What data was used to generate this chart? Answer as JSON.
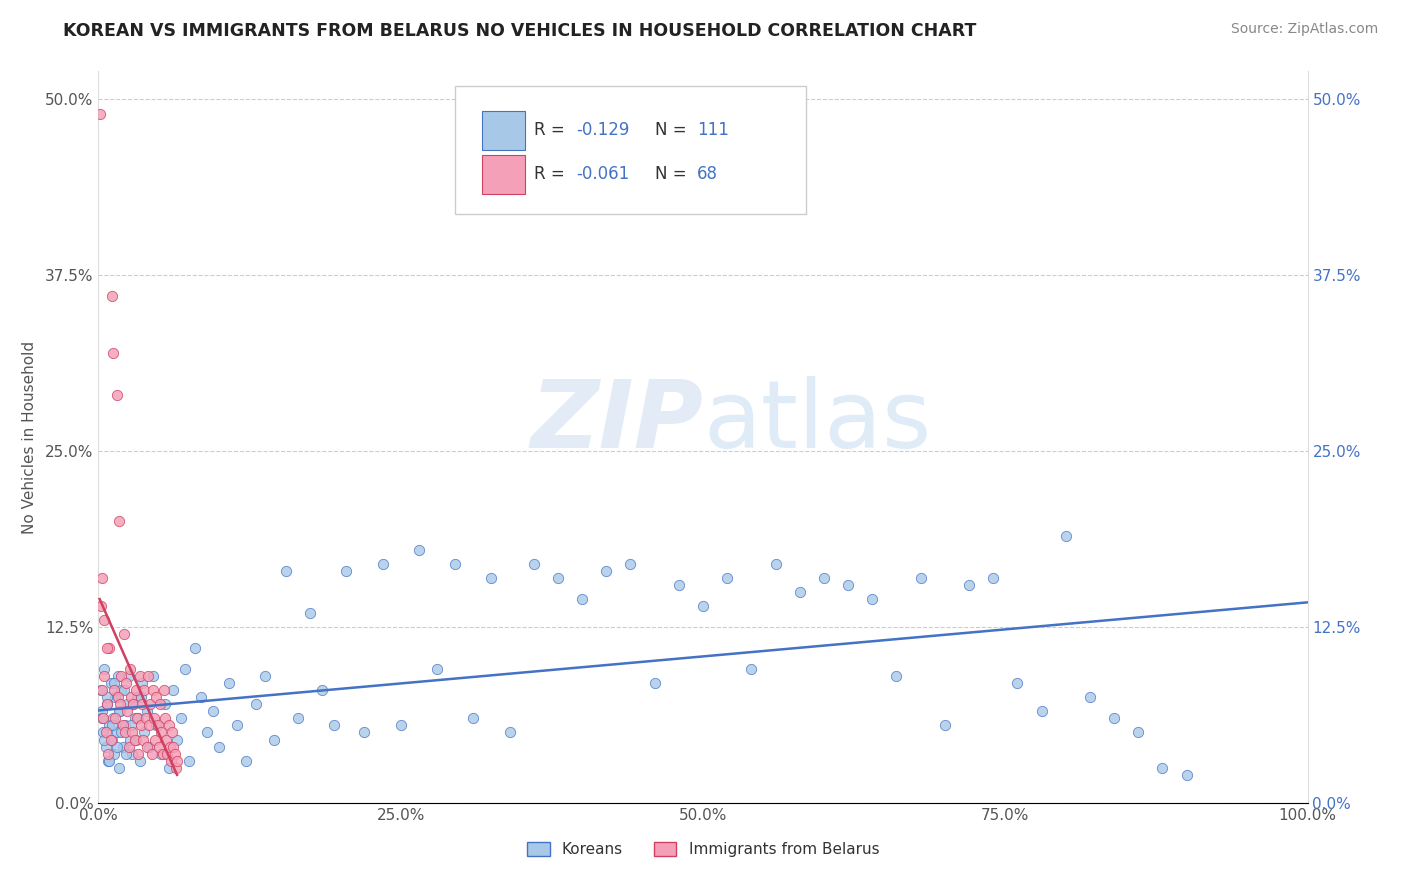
{
  "title": "KOREAN VS IMMIGRANTS FROM BELARUS NO VEHICLES IN HOUSEHOLD CORRELATION CHART",
  "source": "Source: ZipAtlas.com",
  "ylabel": "No Vehicles in Household",
  "legend_korean": "Koreans",
  "legend_belarus": "Immigrants from Belarus",
  "r_korean": -0.129,
  "n_korean": 111,
  "r_belarus": -0.061,
  "n_belarus": 68,
  "color_korean": "#a8c8e8",
  "color_korean_line": "#4472c4",
  "color_belarus": "#f4a0b8",
  "color_belarus_line": "#d04060",
  "xlim": [
    0.0,
    1.0
  ],
  "ylim": [
    0.0,
    0.52
  ],
  "yticks": [
    0.0,
    0.125,
    0.25,
    0.375,
    0.5
  ],
  "ytick_labels": [
    "0.0%",
    "12.5%",
    "25.0%",
    "37.5%",
    "50.0%"
  ],
  "xticks": [
    0.0,
    0.25,
    0.5,
    0.75,
    1.0
  ],
  "xtick_labels": [
    "0.0%",
    "25.0%",
    "50.0%",
    "75.0%",
    "100.0%"
  ]
}
